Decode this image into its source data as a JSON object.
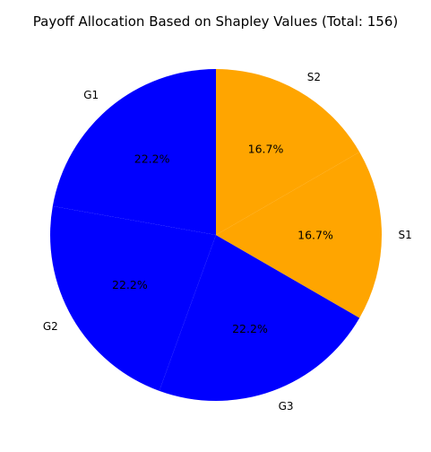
{
  "chart_data": {
    "type": "pie",
    "title": "Payoff Allocation Based on Shapley Values (Total: 156)",
    "start_angle_deg": 90,
    "direction": "counterclockwise",
    "slices": [
      {
        "label": "G1",
        "value": 34.67,
        "percent_label": "22.2%",
        "color": "#0000ff"
      },
      {
        "label": "G2",
        "value": 34.67,
        "percent_label": "22.2%",
        "color": "#0000ff"
      },
      {
        "label": "G3",
        "value": 34.67,
        "percent_label": "22.2%",
        "color": "#0000ff"
      },
      {
        "label": "S1",
        "value": 26.0,
        "percent_label": "16.7%",
        "color": "#ffa500"
      },
      {
        "label": "S2",
        "value": 26.0,
        "percent_label": "16.7%",
        "color": "#ffa500"
      }
    ]
  }
}
